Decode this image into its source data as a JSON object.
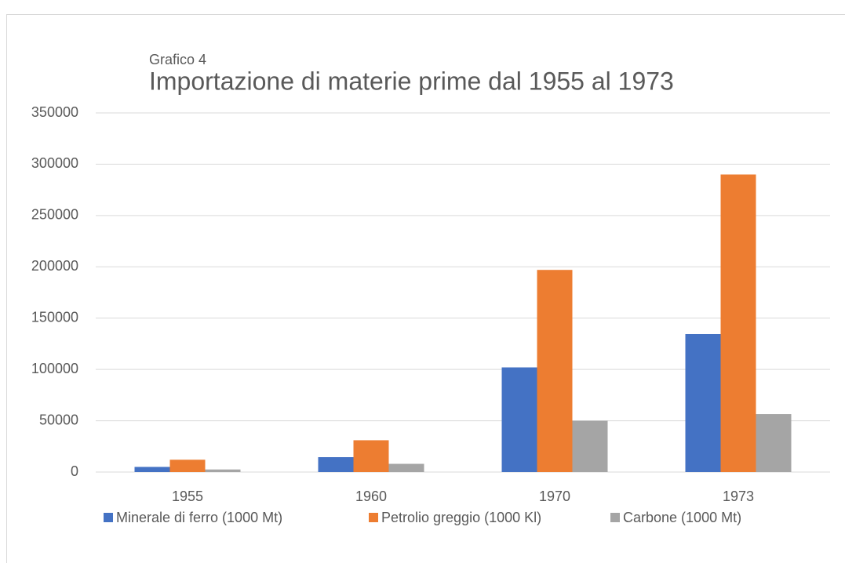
{
  "chart_data": {
    "type": "bar",
    "subtitle": "Grafico 4",
    "title": "Importazione di materie prime dal 1955 al 1973",
    "categories": [
      "1955",
      "1960",
      "1970",
      "1973"
    ],
    "series": [
      {
        "name": "Minerale di ferro (1000 Mt)",
        "color": "#4472c4",
        "values": [
          5000,
          14500,
          102000,
          134500
        ]
      },
      {
        "name": "Petrolio greggio (1000 Kl)",
        "color": "#ed7d31",
        "values": [
          12000,
          31000,
          197000,
          290000
        ]
      },
      {
        "name": "Carbone (1000 Mt)",
        "color": "#a5a5a5",
        "values": [
          2500,
          8000,
          50000,
          56500
        ]
      }
    ],
    "ylim": [
      0,
      350000
    ],
    "yticks": [
      0,
      50000,
      100000,
      150000,
      200000,
      250000,
      300000,
      350000
    ],
    "grid": true,
    "legend": "bottom"
  }
}
